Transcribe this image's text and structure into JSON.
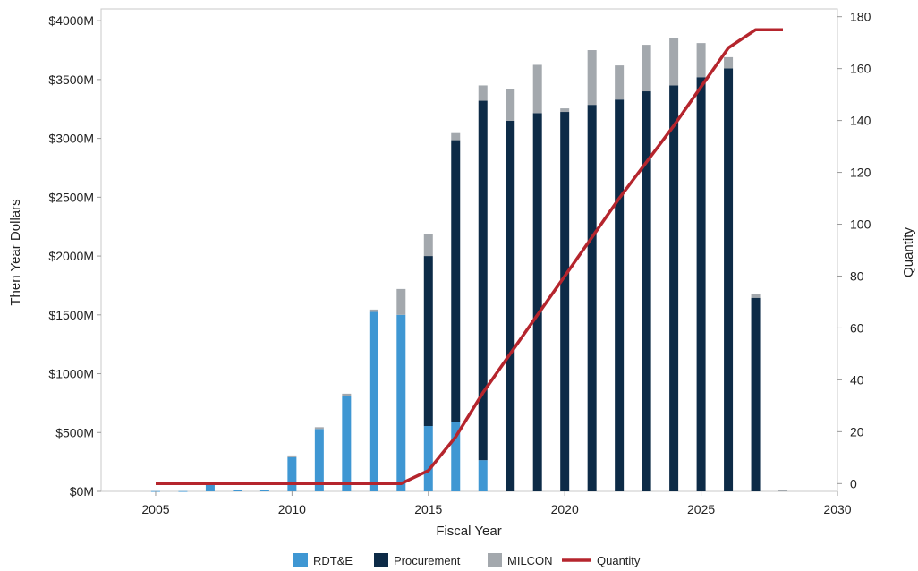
{
  "chart_data": {
    "type": "bar",
    "stacked": true,
    "xlabel": "Fiscal Year",
    "ylabel": "Then Year Dollars",
    "y2label": "Quantity",
    "xlim": [
      2003,
      2030
    ],
    "xticks": [
      2005,
      2010,
      2015,
      2020,
      2025,
      2030
    ],
    "ylim": [
      0,
      4100
    ],
    "yticks": [
      0,
      500,
      1000,
      1500,
      2000,
      2500,
      3000,
      3500,
      4000
    ],
    "ytick_labels": [
      "$0M",
      "$500M",
      "$1000M",
      "$1500M",
      "$2000M",
      "$2500M",
      "$3000M",
      "$3500M",
      "$4000M"
    ],
    "y2lim": [
      -3,
      183
    ],
    "y2ticks": [
      0,
      20,
      40,
      60,
      80,
      100,
      120,
      140,
      160,
      180
    ],
    "legend_position": "bottom",
    "years": [
      2005,
      2006,
      2007,
      2008,
      2009,
      2010,
      2011,
      2012,
      2013,
      2014,
      2015,
      2016,
      2017,
      2018,
      2019,
      2020,
      2021,
      2022,
      2023,
      2024,
      2025,
      2026,
      2027,
      2028
    ],
    "series": [
      {
        "name": "RDT&E",
        "color": "#3f97d3",
        "values": [
          2,
          2,
          60,
          8,
          8,
          290,
          530,
          810,
          1525,
          1500,
          555,
          590,
          265,
          0,
          0,
          0,
          0,
          0,
          0,
          0,
          0,
          0,
          0,
          0
        ]
      },
      {
        "name": "Procurement",
        "color": "#0d2b47",
        "values": [
          0,
          0,
          0,
          0,
          0,
          0,
          0,
          0,
          0,
          0,
          1445,
          2395,
          3055,
          3150,
          3215,
          3225,
          3285,
          3330,
          3400,
          3450,
          3520,
          3595,
          1645,
          0
        ]
      },
      {
        "name": "MILCON",
        "color": "#a3a8ad",
        "values": [
          0,
          0,
          0,
          0,
          0,
          15,
          15,
          20,
          20,
          220,
          190,
          60,
          130,
          270,
          410,
          30,
          465,
          290,
          395,
          400,
          290,
          95,
          30,
          10
        ]
      }
    ],
    "line": {
      "name": "Quantity",
      "color": "#b5252d",
      "x": [
        2005,
        2006,
        2007,
        2008,
        2009,
        2010,
        2011,
        2012,
        2013,
        2014,
        2015,
        2016,
        2017,
        2018,
        2019,
        2020,
        2021,
        2022,
        2023,
        2024,
        2025,
        2026,
        2027,
        2028
      ],
      "values": [
        0,
        0,
        0,
        0,
        0,
        0,
        0,
        0,
        0,
        0,
        5,
        18,
        35,
        50,
        65,
        80,
        95,
        110,
        124,
        138,
        153,
        168,
        175,
        175
      ]
    }
  }
}
